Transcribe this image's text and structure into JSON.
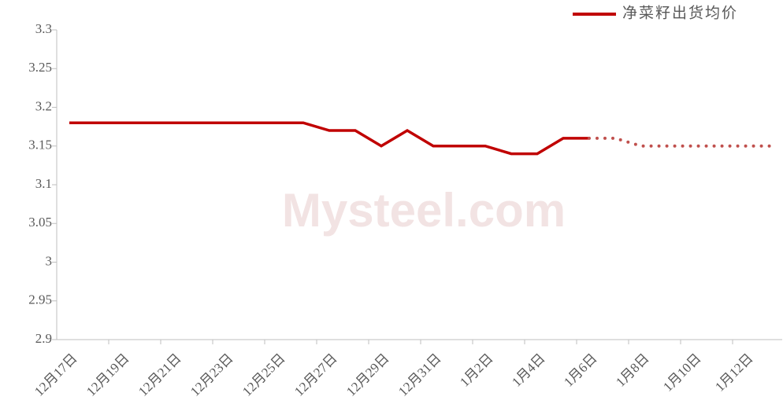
{
  "chart_data": {
    "type": "line",
    "watermark": "Mysteel.com",
    "categories": [
      "12月17日",
      null,
      "12月19日",
      null,
      "12月21日",
      null,
      "12月23日",
      null,
      "12月25日",
      null,
      "12月27日",
      null,
      "12月29日",
      null,
      "12月31日",
      null,
      "1月2日",
      null,
      "1月4日",
      null,
      "1月6日",
      null,
      "1月8日",
      null,
      "1月10日",
      null,
      "1月12日",
      null
    ],
    "series": [
      {
        "name": "净菜籽出货均价",
        "color": "#c00000",
        "style": "solid",
        "values": [
          3.18,
          3.18,
          3.18,
          3.18,
          3.18,
          3.18,
          3.18,
          3.18,
          3.18,
          3.18,
          3.17,
          3.17,
          3.15,
          3.17,
          3.15,
          3.15,
          3.15,
          3.14,
          3.14,
          3.16,
          3.16,
          null,
          null,
          null,
          null,
          null,
          null,
          null
        ]
      },
      {
        "color": "#c0504d",
        "style": "dotted",
        "values": [
          null,
          null,
          null,
          null,
          null,
          null,
          null,
          null,
          null,
          null,
          null,
          null,
          null,
          null,
          null,
          null,
          null,
          null,
          null,
          null,
          3.16,
          3.16,
          3.15,
          3.15,
          3.15,
          3.15,
          3.15,
          3.15
        ]
      }
    ],
    "ylim": [
      2.9,
      3.3
    ],
    "yticks": [
      2.9,
      2.95,
      3,
      3.05,
      3.1,
      3.15,
      3.2,
      3.25,
      3.3
    ],
    "legend": "top-right"
  }
}
